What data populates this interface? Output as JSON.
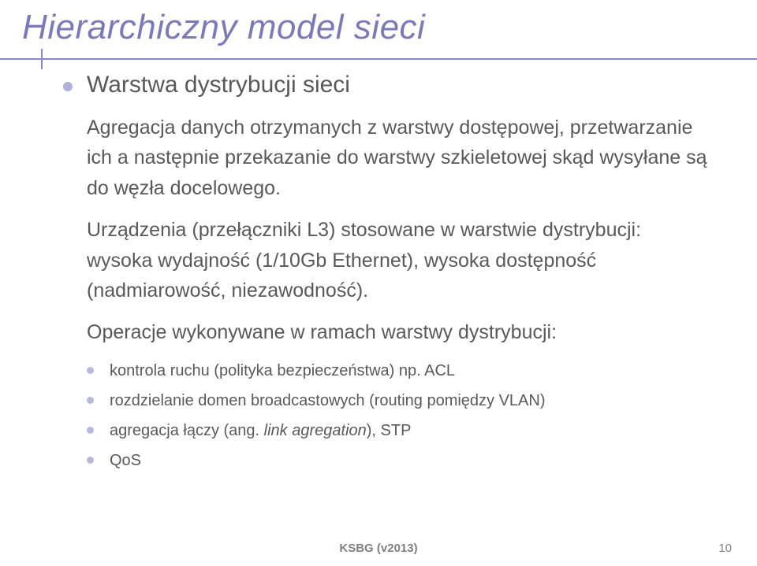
{
  "title": "Hierarchiczny model sieci",
  "bullet_main": "Warstwa dystrybucji sieci",
  "paragraphs": [
    "Agregacja danych otrzymanych z warstwy dostępowej, przetwarzanie ich a następnie przekazanie do warstwy szkieletowej skąd wysyłane są do węzła docelowego.",
    "Urządzenia (przełączniki L3) stosowane w warstwie dystrybucji: wysoka wydajność (1/10Gb Ethernet), wysoka dostępność (nadmiarowość, niezawodność).",
    "Operacje wykonywane w ramach warstwy dystrybucji:"
  ],
  "sub_items": [
    "kontrola ruchu (polityka bezpieczeństwa) np. ACL",
    "rozdzielanie domen broadcastowych (routing pomiędzy VLAN)"
  ],
  "sub_item_agg_prefix": "agregacja łączy (ang. ",
  "sub_item_agg_italic": "link agregation",
  "sub_item_agg_suffix": "), STP",
  "sub_item_qos": "QoS",
  "footer": "KSBG (v2013)",
  "page_number": "10",
  "colors": {
    "title": "#7a7ab8",
    "underline": "#8888c4",
    "body_text": "#595959",
    "bullet": "#b0b0d8",
    "sub_bullet": "#b8b8dc",
    "footer": "#808080",
    "background": "#ffffff"
  }
}
